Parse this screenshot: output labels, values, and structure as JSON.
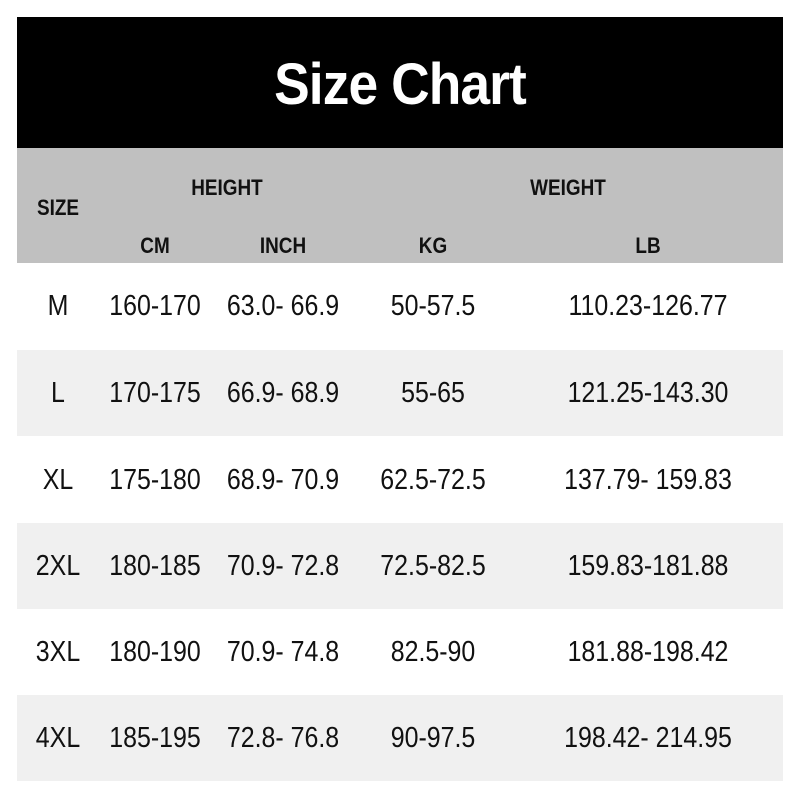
{
  "title": "Size Chart",
  "header": {
    "size": "SIZE",
    "height": "HEIGHT",
    "weight": "WEIGHT",
    "cm": "CM",
    "inch": "INCH",
    "kg": "KG",
    "lb": "LB"
  },
  "rows": [
    {
      "size": "M",
      "cm": "160-170",
      "inch": "63.0- 66.9",
      "kg": "50-57.5",
      "lb": "110.23-126.77"
    },
    {
      "size": "L",
      "cm": "170-175",
      "inch": "66.9- 68.9",
      "kg": "55-65",
      "lb": "121.25-143.30"
    },
    {
      "size": "XL",
      "cm": "175-180",
      "inch": "68.9- 70.9",
      "kg": "62.5-72.5",
      "lb": "137.79- 159.83"
    },
    {
      "size": "2XL",
      "cm": "180-185",
      "inch": "70.9- 72.8",
      "kg": "72.5-82.5",
      "lb": "159.83-181.88"
    },
    {
      "size": "3XL",
      "cm": "180-190",
      "inch": "70.9- 74.8",
      "kg": "82.5-90",
      "lb": "181.88-198.42"
    },
    {
      "size": "4XL",
      "cm": "185-195",
      "inch": "72.8- 76.8",
      "kg": "90-97.5",
      "lb": "198.42- 214.95"
    }
  ],
  "colors": {
    "title_bg": "#000000",
    "header_bg": "#c0c0c0",
    "alt_row_bg": "#f0f0f0"
  }
}
